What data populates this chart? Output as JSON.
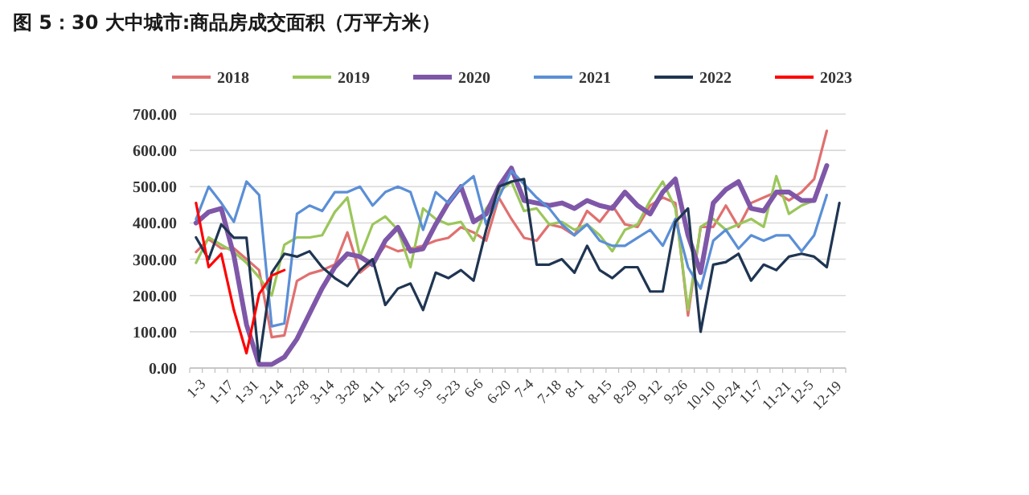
{
  "chart_data": {
    "type": "line",
    "title": "图 5：30 大中城市:商品房成交面积（万平方米）",
    "categories": [
      "1-3",
      null,
      "1-17",
      null,
      "1-31",
      null,
      "2-14",
      null,
      "2-28",
      null,
      "3-14",
      null,
      "3-28",
      null,
      "4-11",
      null,
      "4-25",
      null,
      "5-9",
      null,
      "5-23",
      null,
      "6-6",
      null,
      "6-20",
      null,
      "7-4",
      null,
      "7-18",
      null,
      "8-1",
      null,
      "8-15",
      null,
      "8-29",
      null,
      "9-12",
      null,
      "9-26",
      null,
      "10-10",
      null,
      "10-24",
      null,
      "11-7",
      null,
      "11-21",
      null,
      "12-5",
      null,
      "12-19",
      null
    ],
    "ylim": [
      0,
      700
    ],
    "yticks": [
      {
        "value": 0,
        "label": "0.00"
      },
      {
        "value": 100,
        "label": "100.00"
      },
      {
        "value": 200,
        "label": "200.00"
      },
      {
        "value": 300,
        "label": "300.00"
      },
      {
        "value": 400,
        "label": "400.00"
      },
      {
        "value": 500,
        "label": "500.00"
      },
      {
        "value": 600,
        "label": "600.00"
      },
      {
        "value": 700,
        "label": "700.00"
      }
    ],
    "grid": "y",
    "legend": "top",
    "series": [
      {
        "name": "2018",
        "color": "#e07070",
        "values": [
          320,
          355,
          330,
          330,
          300,
          270,
          85,
          90,
          240,
          260,
          270,
          285,
          374,
          263,
          292,
          337,
          322,
          329,
          337,
          351,
          359,
          388,
          374,
          351,
          470,
          411,
          359,
          351,
          396,
          388,
          366,
          433,
          403,
          448,
          396,
          389,
          448,
          470,
          455,
          145,
          389,
          389,
          448,
          389,
          455,
          470,
          485,
          462,
          485,
          521,
          654,
          null
        ]
      },
      {
        "name": "2019",
        "color": "#9bc65a",
        "values": [
          290,
          360,
          340,
          320,
          290,
          250,
          200,
          340,
          360,
          360,
          366,
          430,
          470,
          307,
          396,
          418,
          381,
          278,
          440,
          411,
          396,
          403,
          351,
          440,
          485,
          514,
          433,
          440,
          396,
          403,
          381,
          396,
          366,
          322,
          381,
          396,
          462,
          514,
          440,
          160,
          389,
          411,
          381,
          396,
          411,
          389,
          529,
          425,
          448,
          462,
          null,
          null
        ]
      },
      {
        "name": "2020",
        "color": "#7f57a8",
        "values": [
          400,
          430,
          440,
          310,
          120,
          10,
          10,
          30,
          80,
          150,
          220,
          278,
          315,
          307,
          285,
          351,
          388,
          322,
          329,
          396,
          455,
          500,
          403,
          425,
          500,
          551,
          462,
          455,
          448,
          455,
          440,
          462,
          448,
          440,
          485,
          448,
          425,
          485,
          521,
          366,
          263,
          455,
          492,
          514,
          440,
          433,
          485,
          485,
          462,
          462,
          558,
          null
        ]
      },
      {
        "name": "2021",
        "color": "#5b8fd6",
        "values": [
          410,
          500,
          455,
          403,
          514,
          477,
          115,
          123,
          425,
          448,
          433,
          485,
          485,
          500,
          448,
          485,
          500,
          485,
          381,
          485,
          455,
          500,
          529,
          396,
          470,
          544,
          507,
          470,
          440,
          396,
          366,
          396,
          351,
          337,
          337,
          359,
          381,
          337,
          411,
          278,
          219,
          351,
          381,
          329,
          366,
          351,
          366,
          366,
          322,
          366,
          477,
          null
        ]
      },
      {
        "name": "2022",
        "color": "#1f3552",
        "values": [
          360,
          300,
          396,
          359,
          359,
          19,
          263,
          315,
          307,
          322,
          278,
          248,
          226,
          270,
          300,
          174,
          219,
          233,
          160,
          263,
          248,
          270,
          241,
          381,
          500,
          514,
          521,
          285,
          285,
          300,
          263,
          337,
          270,
          248,
          278,
          278,
          211,
          211,
          403,
          440,
          100,
          285,
          292,
          315,
          241,
          285,
          270,
          307,
          315,
          307,
          278,
          455
        ]
      },
      {
        "name": "2023",
        "color": "#ff0000",
        "values": [
          455,
          278,
          315,
          160,
          41,
          204,
          255,
          270,
          null,
          null,
          null,
          null,
          null,
          null,
          null,
          null,
          null,
          null,
          null,
          null,
          null,
          null,
          null,
          null,
          null,
          null,
          null,
          null,
          null,
          null,
          null,
          null,
          null,
          null,
          null,
          null,
          null,
          null,
          null,
          null,
          null,
          null,
          null,
          null,
          null,
          null,
          null,
          null,
          null,
          null,
          null,
          null
        ]
      }
    ]
  }
}
